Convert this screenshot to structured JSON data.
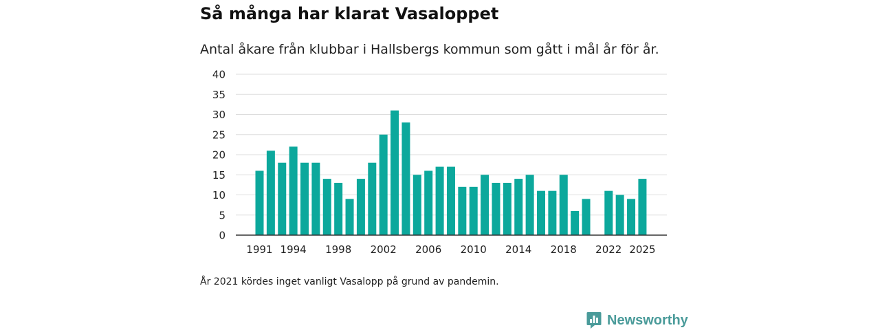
{
  "title": "Så många har klarat Vasaloppet",
  "subtitle": "Antal åkare från klubbar i Hallsbergs kommun som gått i mål år för år.",
  "footnote": "År 2021 kördes inget vanligt Vasalopp på grund av pandemin.",
  "brand": {
    "name": "Newsworthy",
    "icon": "newsworthy-logo-icon",
    "color": "#4a9b9a"
  },
  "colors": {
    "bar": "#0ca89c",
    "grid": "#dddddd",
    "axis": "#333333"
  },
  "chart_data": {
    "type": "bar",
    "title": "Så många har klarat Vasaloppet",
    "xlabel": "",
    "ylabel": "",
    "categories": [
      1991,
      1992,
      1993,
      1994,
      1995,
      1996,
      1997,
      1998,
      1999,
      2000,
      2001,
      2002,
      2003,
      2004,
      2005,
      2006,
      2007,
      2008,
      2009,
      2010,
      2011,
      2012,
      2013,
      2014,
      2015,
      2016,
      2017,
      2018,
      2019,
      2020,
      2021,
      2022,
      2023,
      2024,
      2025
    ],
    "values": [
      16,
      21,
      18,
      22,
      18,
      18,
      14,
      13,
      9,
      14,
      18,
      25,
      31,
      28,
      15,
      16,
      17,
      17,
      12,
      12,
      15,
      13,
      13,
      14,
      15,
      11,
      11,
      15,
      6,
      9,
      null,
      11,
      10,
      9,
      14
    ],
    "x_tick_labels": [
      "1991",
      "1994",
      "1998",
      "2002",
      "2006",
      "2010",
      "2014",
      "2018",
      "2022",
      "2025"
    ],
    "y_ticks": [
      0,
      5,
      10,
      15,
      20,
      25,
      30,
      35,
      40
    ],
    "ylim": [
      0,
      40
    ],
    "grid": true
  }
}
